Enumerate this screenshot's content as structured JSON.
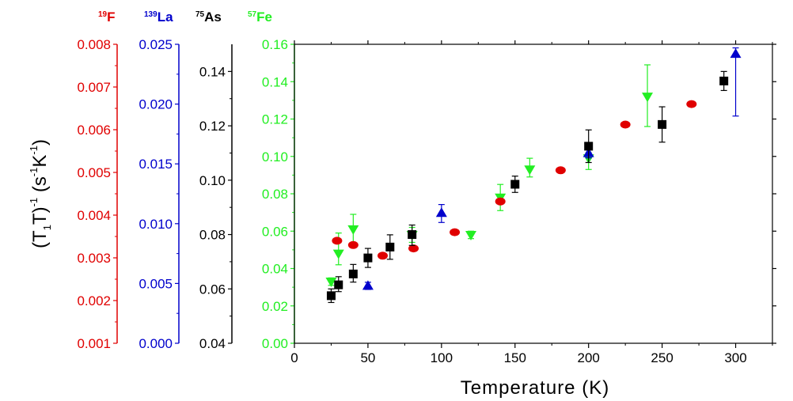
{
  "chart_data": {
    "type": "scatter",
    "xlabel": "Temperature (K)",
    "ylabel": {
      "open": "(T",
      "sub1": "1",
      "mid": "T)",
      "sup1": "-1",
      "mid2": " (s",
      "sup2": "-1",
      "mid3": "K",
      "sup3": "-1",
      "close": ")"
    },
    "x_axis": {
      "range": [
        0,
        325
      ],
      "ticks": [
        0,
        50,
        100,
        150,
        200,
        250,
        300
      ],
      "tick_labels": [
        "0",
        "50",
        "100",
        "150",
        "200",
        "250",
        "300"
      ]
    },
    "y_axes": [
      {
        "nucleus": "19F",
        "mass": "19",
        "element": "F",
        "color": "#e00000",
        "range": [
          0.001,
          0.008
        ],
        "ticks": [
          0.001,
          0.002,
          0.003,
          0.004,
          0.005,
          0.006,
          0.007,
          0.008
        ],
        "tick_labels": [
          "0.001",
          "0.002",
          "0.003",
          "0.004",
          "0.005",
          "0.006",
          "0.007",
          "0.008"
        ]
      },
      {
        "nucleus": "139La",
        "mass": "139",
        "element": "La",
        "color": "#0000cc",
        "range": [
          0.0,
          0.025
        ],
        "ticks": [
          0.0,
          0.005,
          0.01,
          0.015,
          0.02,
          0.025
        ],
        "tick_labels": [
          "0.000",
          "0.005",
          "0.010",
          "0.015",
          "0.020",
          "0.025"
        ]
      },
      {
        "nucleus": "75As",
        "mass": "75",
        "element": "As",
        "color": "#000000",
        "range": [
          0.04,
          0.15
        ],
        "ticks": [
          0.04,
          0.06,
          0.08,
          0.1,
          0.12,
          0.14
        ],
        "tick_labels": [
          "0.04",
          "0.06",
          "0.08",
          "0.10",
          "0.12",
          "0.14"
        ]
      },
      {
        "nucleus": "57Fe",
        "mass": "57",
        "element": "Fe",
        "color": "#22ee22",
        "range": [
          0.0,
          0.16
        ],
        "ticks": [
          0.0,
          0.02,
          0.04,
          0.06,
          0.08,
          0.1,
          0.12,
          0.14,
          0.16
        ],
        "tick_labels": [
          "0.00",
          "0.02",
          "0.04",
          "0.06",
          "0.08",
          "0.10",
          "0.12",
          "0.14",
          "0.16"
        ]
      }
    ],
    "series": [
      {
        "name": "19F",
        "axis": 0,
        "marker": "circle",
        "color": "#e00000",
        "points": [
          {
            "x": 29,
            "y": 0.0034
          },
          {
            "x": 40,
            "y": 0.0033
          },
          {
            "x": 60,
            "y": 0.00305
          },
          {
            "x": 81,
            "y": 0.00322
          },
          {
            "x": 109,
            "y": 0.0036
          },
          {
            "x": 140,
            "y": 0.00432
          },
          {
            "x": 181,
            "y": 0.00505
          },
          {
            "x": 225,
            "y": 0.00612
          },
          {
            "x": 270,
            "y": 0.0066
          }
        ]
      },
      {
        "name": "139La",
        "axis": 1,
        "marker": "triangle-up",
        "color": "#0000cc",
        "points": [
          {
            "x": 50,
            "y": 0.0048,
            "err_up": 0.0003,
            "err_down": 0.0003
          },
          {
            "x": 100,
            "y": 0.0109,
            "err_up": 0.0007,
            "err_down": 0.0008
          },
          {
            "x": 200,
            "y": 0.0159,
            "err_up": 0.0004,
            "err_down": 0.0004
          },
          {
            "x": 300,
            "y": 0.0242,
            "err_up": 0.0005,
            "err_down": 0.0052
          }
        ]
      },
      {
        "name": "75As",
        "axis": 2,
        "marker": "square",
        "color": "#000000",
        "points": [
          {
            "x": 25,
            "y": 0.0575,
            "err_up": 0.0025,
            "err_down": 0.0025
          },
          {
            "x": 30,
            "y": 0.0615,
            "err_up": 0.003,
            "err_down": 0.0025
          },
          {
            "x": 40,
            "y": 0.0655,
            "err_up": 0.0035,
            "err_down": 0.003
          },
          {
            "x": 50,
            "y": 0.0714,
            "err_up": 0.0035,
            "err_down": 0.0035
          },
          {
            "x": 65,
            "y": 0.0754,
            "err_up": 0.0045,
            "err_down": 0.0045
          },
          {
            "x": 80,
            "y": 0.08,
            "err_up": 0.0035,
            "err_down": 0.004
          },
          {
            "x": 150,
            "y": 0.0985,
            "err_up": 0.003,
            "err_down": 0.003
          },
          {
            "x": 200,
            "y": 0.1125,
            "err_up": 0.006,
            "err_down": 0.006
          },
          {
            "x": 250,
            "y": 0.1205,
            "err_up": 0.0065,
            "err_down": 0.0065
          },
          {
            "x": 292,
            "y": 0.1365,
            "err_up": 0.0035,
            "err_down": 0.0035
          }
        ]
      },
      {
        "name": "57Fe",
        "axis": 3,
        "marker": "triangle-down",
        "color": "#22ee22",
        "points": [
          {
            "x": 25,
            "y": 0.033,
            "err_up": 0.002,
            "err_down": 0.002
          },
          {
            "x": 30,
            "y": 0.048,
            "err_up": 0.011,
            "err_down": 0.006
          },
          {
            "x": 40,
            "y": 0.061,
            "err_up": 0.008,
            "err_down": 0.007
          },
          {
            "x": 80,
            "y": 0.058,
            "err_up": 0.004,
            "err_down": 0.004
          },
          {
            "x": 120,
            "y": 0.058,
            "err_up": 0.002,
            "err_down": 0.002
          },
          {
            "x": 140,
            "y": 0.078,
            "err_up": 0.007,
            "err_down": 0.007
          },
          {
            "x": 160,
            "y": 0.093,
            "err_up": 0.006,
            "err_down": 0.004
          },
          {
            "x": 200,
            "y": 0.099,
            "err_up": 0.003,
            "err_down": 0.006
          },
          {
            "x": 240,
            "y": 0.132,
            "err_up": 0.017,
            "err_down": 0.016
          }
        ]
      }
    ]
  }
}
